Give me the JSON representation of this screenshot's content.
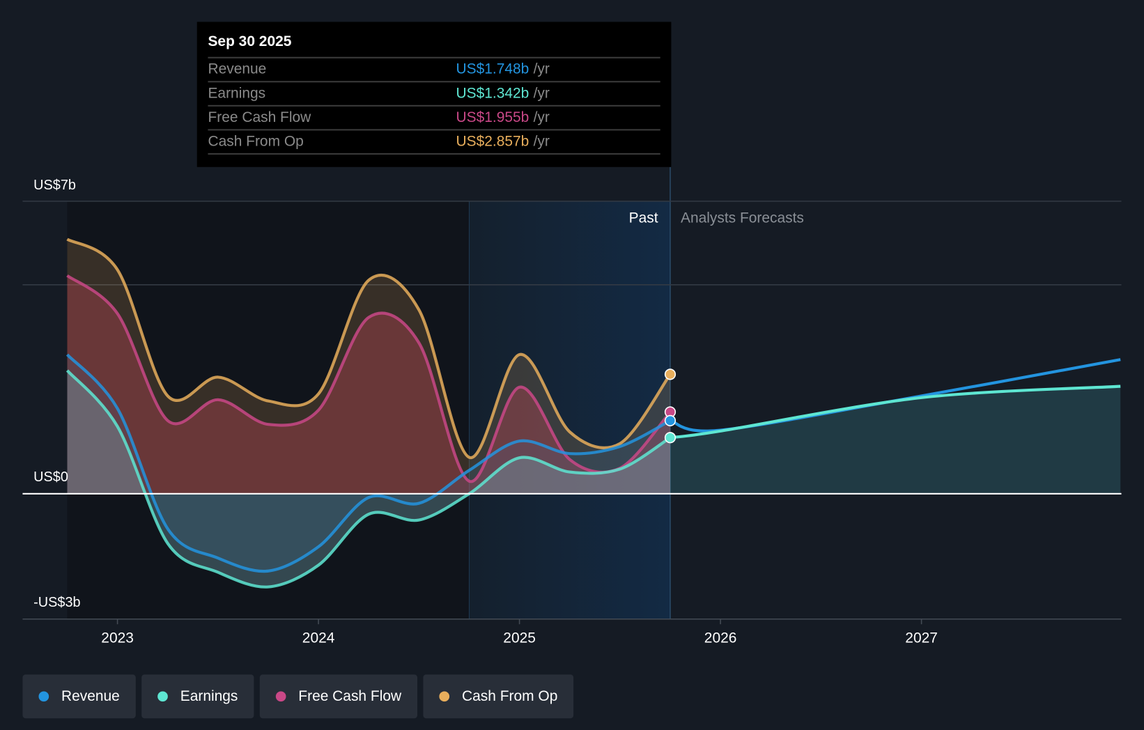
{
  "tooltip": {
    "date": "Sep 30 2025",
    "unit": "/yr",
    "rows": [
      {
        "label": "Revenue",
        "value": "US$1.748b",
        "color": "#2394df"
      },
      {
        "label": "Earnings",
        "value": "US$1.342b",
        "color": "#5ee6d2"
      },
      {
        "label": "Free Cash Flow",
        "value": "US$1.955b",
        "color": "#c94887"
      },
      {
        "label": "Cash From Op",
        "value": "US$2.857b",
        "color": "#e8ae5c"
      }
    ]
  },
  "chart_data": {
    "type": "line",
    "ylabel_top": "US$7b",
    "ylabel_zero": "US$0",
    "ylabel_bottom": "-US$3b",
    "ylim": [
      -3,
      7
    ],
    "xlim": [
      2022.53,
      2028.0
    ],
    "xticks": [
      {
        "v": 2023,
        "label": "2023"
      },
      {
        "v": 2024,
        "label": "2024"
      },
      {
        "v": 2025,
        "label": "2025"
      },
      {
        "v": 2026,
        "label": "2026"
      },
      {
        "v": 2027,
        "label": "2027"
      }
    ],
    "past_label": "Past",
    "forecast_label": "Analysts Forecasts",
    "highlight_start": 2024.75,
    "present": 2025.75,
    "series": [
      {
        "name": "Cash From Op",
        "color": "#e8ae5c",
        "x": [
          2022.75,
          2023.0,
          2023.25,
          2023.5,
          2023.75,
          2024.0,
          2024.25,
          2024.5,
          2024.75,
          2025.0,
          2025.25,
          2025.5,
          2025.75
        ],
        "y": [
          6.09,
          5.36,
          2.34,
          2.79,
          2.22,
          2.39,
          5.11,
          4.4,
          0.87,
          3.33,
          1.48,
          1.2,
          2.857
        ]
      },
      {
        "name": "Free Cash Flow",
        "color": "#c94887",
        "x": [
          2022.75,
          2023.0,
          2023.25,
          2023.5,
          2023.75,
          2024.0,
          2024.25,
          2024.5,
          2024.75,
          2025.0,
          2025.25,
          2025.5,
          2025.75
        ],
        "y": [
          5.22,
          4.31,
          1.75,
          2.25,
          1.66,
          2.0,
          4.22,
          3.61,
          0.3,
          2.55,
          0.82,
          0.61,
          1.955
        ]
      },
      {
        "name": "Revenue",
        "color": "#2394df",
        "x": [
          2022.75,
          2023.0,
          2023.25,
          2023.5,
          2023.75,
          2024.0,
          2024.25,
          2024.5,
          2024.75,
          2025.0,
          2025.25,
          2025.5,
          2025.75,
          2026.0,
          2027.0,
          2027.99
        ],
        "y": [
          3.33,
          2.04,
          -0.84,
          -1.54,
          -1.85,
          -1.27,
          -0.09,
          -0.23,
          0.56,
          1.26,
          0.96,
          1.13,
          1.748,
          1.52,
          2.34,
          3.21
        ]
      },
      {
        "name": "Earnings",
        "color": "#5ee6d2",
        "x": [
          2022.75,
          2023.0,
          2023.25,
          2023.5,
          2023.75,
          2024.0,
          2024.25,
          2024.5,
          2024.75,
          2025.0,
          2025.25,
          2025.5,
          2025.75,
          2026.0,
          2027.0,
          2027.99
        ],
        "y": [
          2.95,
          1.61,
          -1.19,
          -1.88,
          -2.23,
          -1.71,
          -0.49,
          -0.63,
          0.0,
          0.86,
          0.52,
          0.59,
          1.342,
          1.5,
          2.3,
          2.57
        ]
      }
    ]
  },
  "legend": [
    {
      "label": "Revenue",
      "color": "#2394df"
    },
    {
      "label": "Earnings",
      "color": "#5ee6d2"
    },
    {
      "label": "Free Cash Flow",
      "color": "#c94887"
    },
    {
      "label": "Cash From Op",
      "color": "#e8ae5c"
    }
  ]
}
